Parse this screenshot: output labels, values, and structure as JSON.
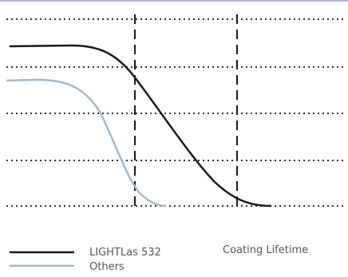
{
  "chart_data": {
    "type": "line",
    "title": "",
    "xlabel": "",
    "ylabel": "",
    "grid": "dotted horizontal lines",
    "reference_lines": [
      {
        "orientation": "vertical",
        "style": "dashed",
        "color": "#1a1a1a"
      },
      {
        "orientation": "vertical",
        "style": "dashed",
        "color": "#1a1a1a"
      }
    ],
    "legend_position": "bottom",
    "series": [
      {
        "name": "LIGHTLas 532",
        "color": "#1a1a1a",
        "style": "solid",
        "description": "flat high plateau, then S-shaped decline to the floor"
      },
      {
        "name": "Others",
        "color": "#9fb8cc",
        "style": "solid",
        "description": "starts lower, declines earlier than LIGHTLas 532"
      }
    ],
    "annotation": "Coating Lifetime"
  }
}
